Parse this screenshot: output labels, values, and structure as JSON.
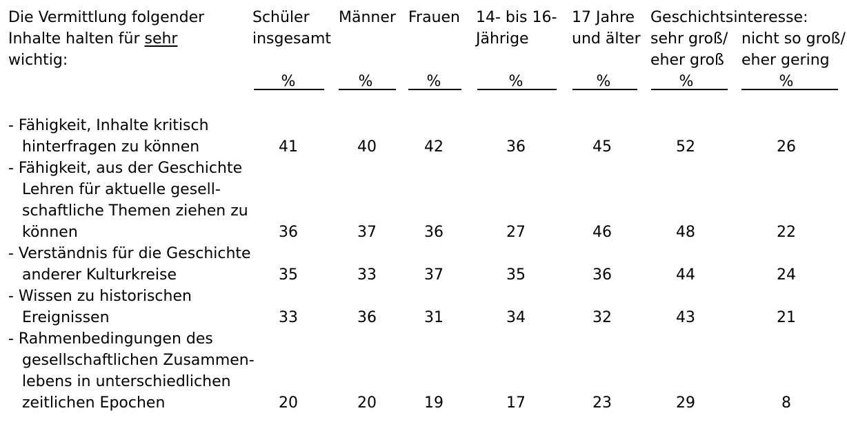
{
  "header": {
    "lead": [
      "Die Vermittlung folgender",
      "Inhalte halten für ",
      "sehr",
      "wichtig:"
    ],
    "groups": {
      "schueler": [
        "Schüler",
        "insgesamt"
      ],
      "maenner": "Männer",
      "frauen": "Frauen",
      "jung": [
        "14- bis 16-",
        "Jährige"
      ],
      "alt": [
        "17 Jahre",
        "und älter"
      ],
      "interesse": "Geschichtsinteresse:",
      "gross": [
        "sehr groß/",
        "eher groß"
      ],
      "gering": [
        "nicht so groß/",
        "eher gering"
      ]
    },
    "unit": "%"
  },
  "rows": [
    {
      "label": [
        "- Fähigkeit, Inhalte kritisch",
        "hinterfragen zu können"
      ],
      "values": [
        "41",
        "40",
        "42",
        "36",
        "45",
        "52",
        "26"
      ]
    },
    {
      "label": [
        "- Fähigkeit, aus der Geschichte",
        "Lehren für aktuelle gesell-",
        "schaftliche Themen ziehen zu",
        "können"
      ],
      "values": [
        "36",
        "37",
        "36",
        "27",
        "46",
        "48",
        "22"
      ]
    },
    {
      "label": [
        "- Verständnis für die Geschichte",
        "anderer Kulturkreise"
      ],
      "values": [
        "35",
        "33",
        "37",
        "35",
        "36",
        "44",
        "24"
      ]
    },
    {
      "label": [
        "- Wissen zu historischen",
        "Ereignissen"
      ],
      "values": [
        "33",
        "36",
        "31",
        "34",
        "32",
        "43",
        "21"
      ]
    },
    {
      "label": [
        "- Rahmenbedingungen des",
        "gesellschaftlichen Zusammen-",
        "lebens in unterschiedlichen",
        "zeitlichen Epochen"
      ],
      "values": [
        "20",
        "20",
        "19",
        "17",
        "23",
        "29",
        "8"
      ]
    }
  ]
}
